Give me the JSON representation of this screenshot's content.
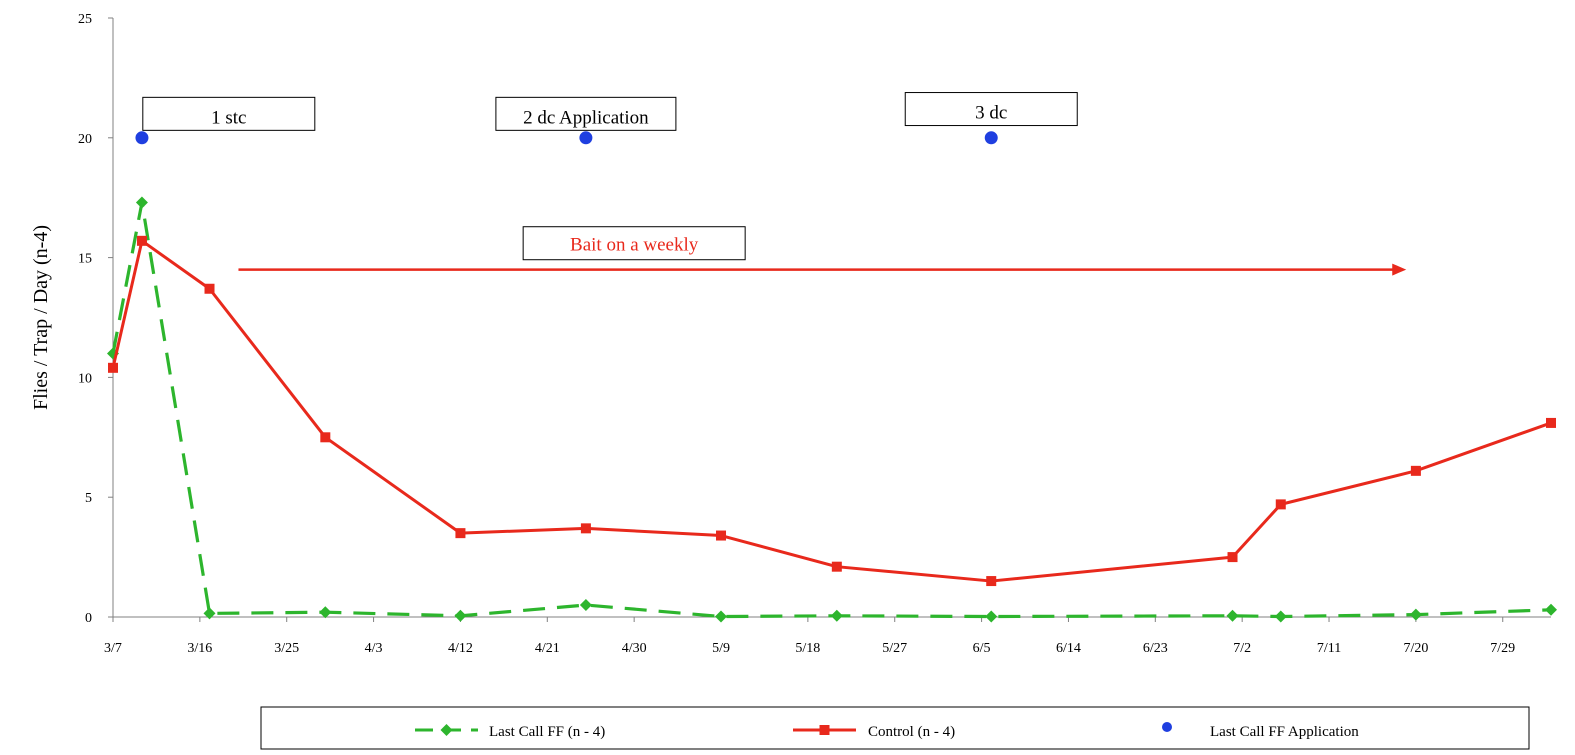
{
  "chart_data": {
    "type": "line",
    "title": "",
    "xlabel": "",
    "ylabel": "Flies / Trap / Day (n-4)",
    "ylim": [
      0,
      25
    ],
    "yticks": [
      0,
      5,
      10,
      15,
      20,
      25
    ],
    "xlim": [
      "3/7",
      "8/3"
    ],
    "xtick_labels": [
      "3/7",
      "3/16",
      "3/25",
      "4/3",
      "4/12",
      "4/21",
      "4/30",
      "5/9",
      "5/18",
      "5/27",
      "6/5",
      "6/14",
      "6/23",
      "7/2",
      "7/11",
      "7/20",
      "7/29"
    ],
    "grid": false,
    "legend_position": "bottom",
    "series": [
      {
        "name": "Last Call FF (n - 4)",
        "color": "#2db52d",
        "style": "dashed",
        "marker": "diamond",
        "x": [
          "3/7",
          "3/10",
          "3/17",
          "3/29",
          "4/12",
          "4/25",
          "5/9",
          "5/21",
          "6/6",
          "7/1",
          "7/6",
          "7/20",
          "8/3"
        ],
        "y": [
          11.0,
          17.3,
          0.15,
          0.2,
          0.05,
          0.5,
          0.02,
          0.05,
          0.02,
          0.05,
          0.02,
          0.1,
          0.3
        ]
      },
      {
        "name": "Control (n - 4)",
        "color": "#e8291c",
        "style": "solid",
        "marker": "square",
        "x": [
          "3/7",
          "3/10",
          "3/17",
          "3/29",
          "4/12",
          "4/25",
          "5/9",
          "5/21",
          "6/6",
          "7/1",
          "7/6",
          "7/20",
          "8/3"
        ],
        "y": [
          10.4,
          15.7,
          13.7,
          7.5,
          3.5,
          3.7,
          3.4,
          2.1,
          1.5,
          2.5,
          4.7,
          6.1,
          8.1
        ]
      },
      {
        "name": "Last Call FF Application",
        "color": "#1f3fe0",
        "style": "none",
        "marker": "circle",
        "x": [
          "3/10",
          "4/25",
          "6/6"
        ],
        "y": [
          20,
          20,
          20
        ]
      }
    ],
    "annotations": [
      {
        "text": "1 stc",
        "x": "3/19",
        "y": 21
      },
      {
        "text": "2 dc Application",
        "x": "4/25",
        "y": 21
      },
      {
        "text": "3 dc",
        "x": "6/6",
        "y": 21.2
      },
      {
        "text": "Bait on a weekly",
        "x": "4/30",
        "y": 15.6,
        "color": "#e8291c"
      }
    ],
    "arrow": {
      "from_x": "3/20",
      "to_x": "7/19",
      "y": 14.5,
      "color": "#e8291c"
    }
  }
}
